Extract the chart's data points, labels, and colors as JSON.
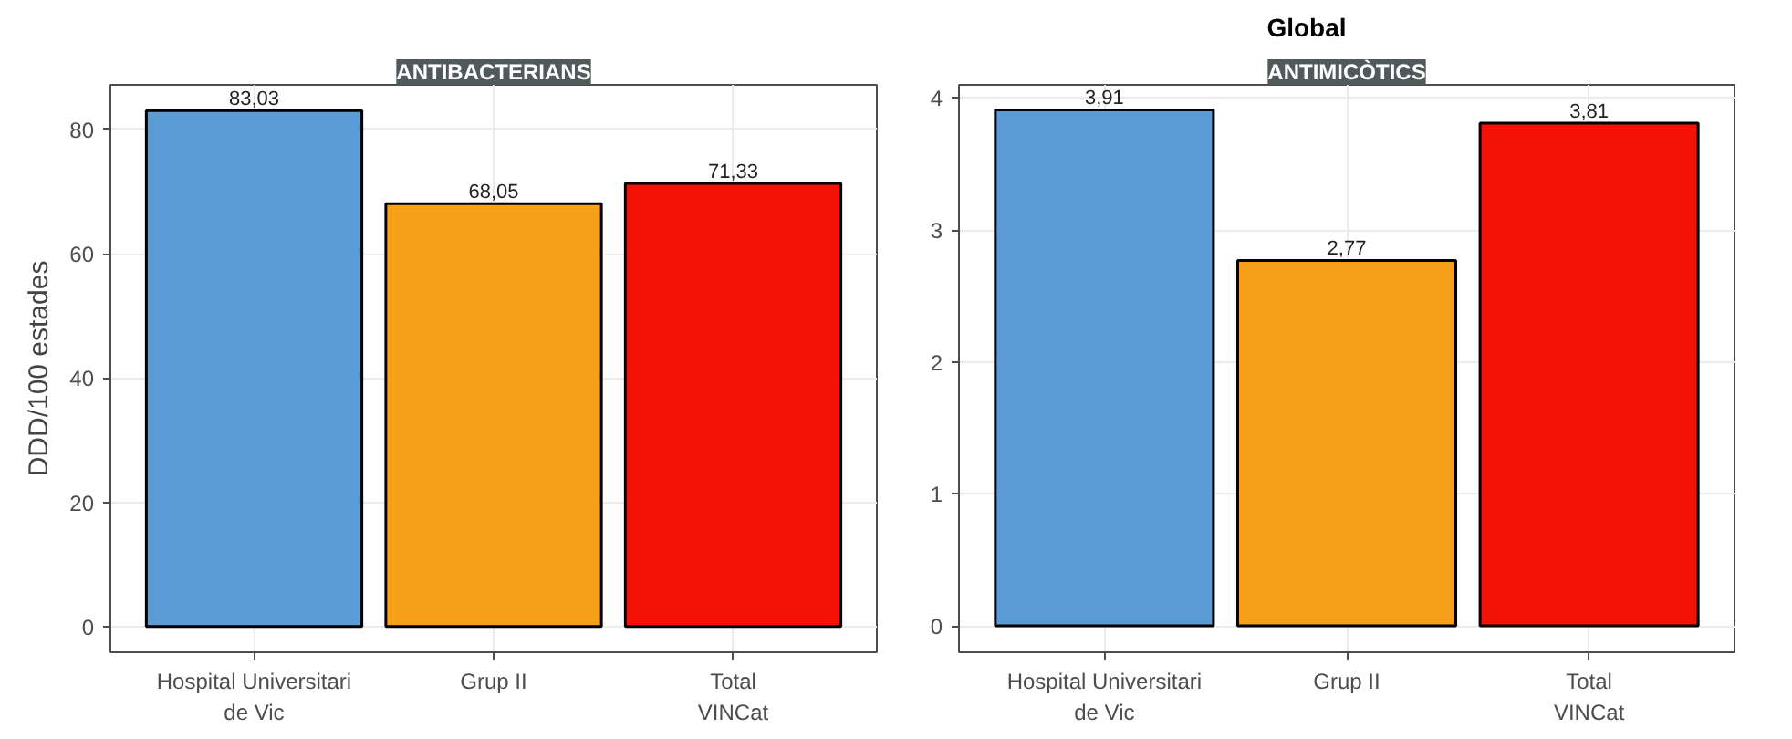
{
  "chart_data": [
    {
      "type": "bar",
      "title": "ANTIBACTERIANS",
      "annotations": [
        "Global"
      ],
      "ylabel": "DDD/100 estades",
      "categories": [
        "Hospital Universitari\nde Vic",
        "Grup II",
        "Total\nVINCat"
      ],
      "values": [
        83.03,
        68.05,
        71.33
      ],
      "colors": [
        "#5b9bd5",
        "#f7a11a",
        "#f31208"
      ],
      "value_labels": [
        "83,03",
        "68,05",
        "71,33"
      ],
      "ylim": [
        -4.15,
        87.18
      ],
      "yticks": [
        0,
        20,
        40,
        60,
        80
      ],
      "grid": true
    },
    {
      "type": "bar",
      "title": "ANTIMICÒTICS",
      "categories": [
        "Hospital Universitari\nde Vic",
        "Grup II",
        "Total\nVINCat"
      ],
      "values": [
        3.91,
        2.77,
        3.81
      ],
      "colors": [
        "#5b9bd5",
        "#f7a11a",
        "#f31208"
      ],
      "value_labels": [
        "3,91",
        "2,77",
        "3,81"
      ],
      "ylim": [
        -0.2,
        4.1
      ],
      "yticks": [
        0,
        1,
        2,
        3,
        4
      ],
      "grid": true
    }
  ]
}
